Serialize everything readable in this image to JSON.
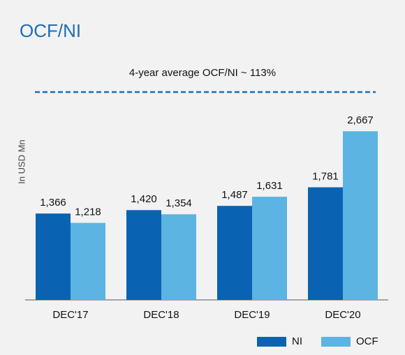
{
  "chart_data": {
    "type": "bar",
    "title": "OCF/NI",
    "annotation": "4-year average OCF/NI ~ 113%",
    "y_label": "In USD Mn",
    "categories": [
      "DEC'17",
      "DEC'18",
      "DEC'19",
      "DEC'20"
    ],
    "series": [
      {
        "name": "NI",
        "color": "#0a63b2",
        "values": [
          1366,
          1420,
          1487,
          1781
        ],
        "value_labels": [
          "1,366",
          "1,420",
          "1,487",
          "1,781"
        ]
      },
      {
        "name": "OCF",
        "color": "#5bb4e1",
        "values": [
          1218,
          1354,
          1631,
          2667
        ],
        "value_labels": [
          "1,218",
          "1,354",
          "1,631",
          "2,667"
        ]
      }
    ],
    "ylim": [
      0,
      3000
    ],
    "legend": "bottom-right"
  }
}
